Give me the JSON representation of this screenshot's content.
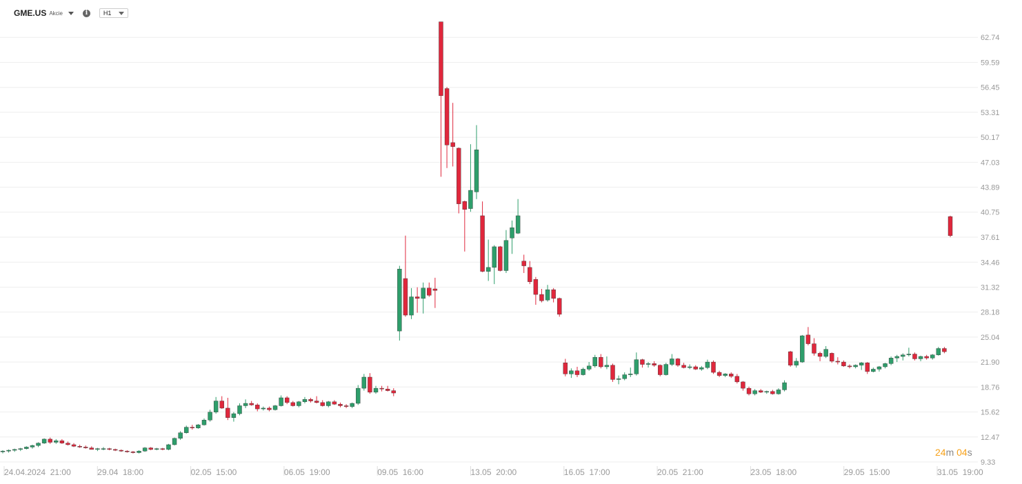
{
  "header": {
    "symbol": "GME.US",
    "asset_type": "Akcie",
    "timeframe": "H1"
  },
  "countdown": {
    "minutes": "24",
    "m_unit": "m",
    "seconds": "04",
    "s_unit": "s"
  },
  "colors": {
    "up": "#2e9e6b",
    "down": "#e0273c",
    "grid": "#eeeeee",
    "axis_text": "#999999",
    "countdown": "#f7a21b"
  },
  "chart_data": {
    "type": "candlestick",
    "title": "",
    "xlabel": "",
    "ylabel": "",
    "ylim": [
      9.33,
      65.88
    ],
    "grid": true,
    "y_ticks": [
      "62.74",
      "59.59",
      "56.45",
      "53.31",
      "50.17",
      "47.03",
      "43.89",
      "40.75",
      "37.61",
      "34.46",
      "31.32",
      "28.18",
      "25.04",
      "21.90",
      "18.76",
      "15.62",
      "12.47",
      "9.33"
    ],
    "x_ticks": [
      "24.04.2024  21:00",
      "29.04  18:00",
      "02.05  15:00",
      "06.05  19:00",
      "09.05  16:00",
      "13.05  20:00",
      "16.05  17:00",
      "20.05  21:00",
      "23.05  18:00",
      "29.05  15:00",
      "31.05  19:00"
    ],
    "candles": [
      {
        "o": 10.6,
        "h": 10.8,
        "l": 10.4,
        "c": 10.7
      },
      {
        "o": 10.7,
        "h": 10.9,
        "l": 10.5,
        "c": 10.8
      },
      {
        "o": 10.8,
        "h": 11.0,
        "l": 10.6,
        "c": 10.9
      },
      {
        "o": 10.9,
        "h": 11.1,
        "l": 10.7,
        "c": 11.0
      },
      {
        "o": 11.0,
        "h": 11.3,
        "l": 10.9,
        "c": 11.2
      },
      {
        "o": 11.2,
        "h": 11.5,
        "l": 11.0,
        "c": 11.4
      },
      {
        "o": 11.4,
        "h": 11.8,
        "l": 11.2,
        "c": 11.7
      },
      {
        "o": 11.7,
        "h": 12.3,
        "l": 11.6,
        "c": 12.2
      },
      {
        "o": 12.2,
        "h": 12.4,
        "l": 11.6,
        "c": 11.8
      },
      {
        "o": 11.8,
        "h": 12.2,
        "l": 11.6,
        "c": 12.0
      },
      {
        "o": 12.0,
        "h": 12.2,
        "l": 11.6,
        "c": 11.7
      },
      {
        "o": 11.7,
        "h": 11.9,
        "l": 11.4,
        "c": 11.5
      },
      {
        "o": 11.5,
        "h": 11.7,
        "l": 11.2,
        "c": 11.3
      },
      {
        "o": 11.3,
        "h": 11.5,
        "l": 11.1,
        "c": 11.2
      },
      {
        "o": 11.2,
        "h": 11.4,
        "l": 11.0,
        "c": 11.1
      },
      {
        "o": 11.1,
        "h": 11.3,
        "l": 10.9,
        "c": 10.9
      },
      {
        "o": 10.9,
        "h": 11.1,
        "l": 10.7,
        "c": 11.0
      },
      {
        "o": 11.0,
        "h": 11.2,
        "l": 10.8,
        "c": 11.0
      },
      {
        "o": 11.0,
        "h": 11.1,
        "l": 10.8,
        "c": 10.9
      },
      {
        "o": 10.9,
        "h": 11.0,
        "l": 10.7,
        "c": 10.8
      },
      {
        "o": 10.8,
        "h": 10.9,
        "l": 10.6,
        "c": 10.7
      },
      {
        "o": 10.7,
        "h": 10.8,
        "l": 10.5,
        "c": 10.6
      },
      {
        "o": 10.6,
        "h": 10.7,
        "l": 10.4,
        "c": 10.5
      },
      {
        "o": 10.5,
        "h": 10.8,
        "l": 10.4,
        "c": 10.7
      },
      {
        "o": 10.7,
        "h": 11.2,
        "l": 10.6,
        "c": 11.1
      },
      {
        "o": 11.1,
        "h": 11.2,
        "l": 10.8,
        "c": 10.9
      },
      {
        "o": 10.9,
        "h": 11.1,
        "l": 10.8,
        "c": 11.0
      },
      {
        "o": 11.0,
        "h": 11.1,
        "l": 10.8,
        "c": 10.9
      },
      {
        "o": 10.9,
        "h": 11.6,
        "l": 10.8,
        "c": 11.5
      },
      {
        "o": 11.5,
        "h": 12.4,
        "l": 11.4,
        "c": 12.3
      },
      {
        "o": 12.3,
        "h": 13.2,
        "l": 12.1,
        "c": 13.0
      },
      {
        "o": 13.0,
        "h": 13.9,
        "l": 12.9,
        "c": 13.7
      },
      {
        "o": 13.7,
        "h": 14.0,
        "l": 13.4,
        "c": 13.6
      },
      {
        "o": 13.6,
        "h": 14.1,
        "l": 13.5,
        "c": 14.0
      },
      {
        "o": 14.0,
        "h": 14.8,
        "l": 13.9,
        "c": 14.6
      },
      {
        "o": 14.6,
        "h": 15.9,
        "l": 14.4,
        "c": 15.6
      },
      {
        "o": 15.6,
        "h": 17.5,
        "l": 15.4,
        "c": 17.0
      },
      {
        "o": 17.0,
        "h": 17.6,
        "l": 16.0,
        "c": 16.1
      },
      {
        "o": 16.1,
        "h": 17.4,
        "l": 14.6,
        "c": 14.9
      },
      {
        "o": 14.9,
        "h": 15.6,
        "l": 14.4,
        "c": 15.4
      },
      {
        "o": 15.4,
        "h": 16.7,
        "l": 15.2,
        "c": 16.4
      },
      {
        "o": 16.4,
        "h": 17.2,
        "l": 16.1,
        "c": 16.7
      },
      {
        "o": 16.7,
        "h": 17.0,
        "l": 16.4,
        "c": 16.5
      },
      {
        "o": 16.5,
        "h": 16.7,
        "l": 15.7,
        "c": 16.0
      },
      {
        "o": 16.0,
        "h": 16.3,
        "l": 15.8,
        "c": 16.1
      },
      {
        "o": 16.1,
        "h": 16.3,
        "l": 15.7,
        "c": 15.9
      },
      {
        "o": 15.9,
        "h": 16.5,
        "l": 15.8,
        "c": 16.4
      },
      {
        "o": 16.4,
        "h": 17.7,
        "l": 16.3,
        "c": 17.4
      },
      {
        "o": 17.4,
        "h": 17.6,
        "l": 16.6,
        "c": 16.8
      },
      {
        "o": 16.8,
        "h": 17.0,
        "l": 16.3,
        "c": 16.4
      },
      {
        "o": 16.4,
        "h": 17.0,
        "l": 16.2,
        "c": 16.9
      },
      {
        "o": 16.9,
        "h": 17.5,
        "l": 16.7,
        "c": 17.2
      },
      {
        "o": 17.2,
        "h": 17.4,
        "l": 16.8,
        "c": 17.0
      },
      {
        "o": 17.0,
        "h": 17.6,
        "l": 16.7,
        "c": 16.8
      },
      {
        "o": 16.8,
        "h": 17.1,
        "l": 16.3,
        "c": 16.4
      },
      {
        "o": 16.4,
        "h": 17.0,
        "l": 16.2,
        "c": 16.9
      },
      {
        "o": 16.9,
        "h": 17.1,
        "l": 16.5,
        "c": 16.6
      },
      {
        "o": 16.6,
        "h": 16.8,
        "l": 16.2,
        "c": 16.4
      },
      {
        "o": 16.4,
        "h": 16.6,
        "l": 16.1,
        "c": 16.3
      },
      {
        "o": 16.3,
        "h": 16.8,
        "l": 16.1,
        "c": 16.7
      },
      {
        "o": 16.7,
        "h": 19.0,
        "l": 16.5,
        "c": 18.6
      },
      {
        "o": 18.6,
        "h": 20.4,
        "l": 18.3,
        "c": 20.0
      },
      {
        "o": 20.0,
        "h": 20.5,
        "l": 17.9,
        "c": 18.1
      },
      {
        "o": 18.1,
        "h": 18.9,
        "l": 17.9,
        "c": 18.6
      },
      {
        "o": 18.6,
        "h": 18.9,
        "l": 18.2,
        "c": 18.5
      },
      {
        "o": 18.5,
        "h": 18.9,
        "l": 18.2,
        "c": 18.3
      },
      {
        "o": 18.3,
        "h": 18.6,
        "l": 17.6,
        "c": 18.0
      },
      {
        "o": 25.8,
        "h": 34.0,
        "l": 24.6,
        "c": 33.6
      },
      {
        "o": 32.4,
        "h": 37.8,
        "l": 27.6,
        "c": 27.8
      },
      {
        "o": 27.8,
        "h": 31.2,
        "l": 27.3,
        "c": 30.1
      },
      {
        "o": 30.1,
        "h": 31.3,
        "l": 28.1,
        "c": 29.9
      },
      {
        "o": 29.9,
        "h": 31.9,
        "l": 28.0,
        "c": 31.2
      },
      {
        "o": 31.2,
        "h": 31.9,
        "l": 30.1,
        "c": 30.3
      },
      {
        "o": 31.1,
        "h": 32.5,
        "l": 28.7,
        "c": 30.9
      },
      {
        "o": 64.7,
        "h": 64.7,
        "l": 45.2,
        "c": 55.4
      },
      {
        "o": 56.3,
        "h": 56.5,
        "l": 46.3,
        "c": 49.2
      },
      {
        "o": 49.5,
        "h": 54.5,
        "l": 46.5,
        "c": 49.0
      },
      {
        "o": 48.8,
        "h": 48.9,
        "l": 40.6,
        "c": 41.8
      },
      {
        "o": 42.1,
        "h": 42.2,
        "l": 35.8,
        "c": 41.1
      },
      {
        "o": 41.2,
        "h": 49.3,
        "l": 40.8,
        "c": 43.5
      },
      {
        "o": 43.3,
        "h": 51.7,
        "l": 42.4,
        "c": 48.6
      },
      {
        "o": 40.3,
        "h": 42.1,
        "l": 33.2,
        "c": 33.3
      },
      {
        "o": 33.3,
        "h": 37.3,
        "l": 32.1,
        "c": 33.8
      },
      {
        "o": 33.8,
        "h": 36.6,
        "l": 31.7,
        "c": 36.4
      },
      {
        "o": 36.4,
        "h": 36.5,
        "l": 33.3,
        "c": 33.4
      },
      {
        "o": 33.4,
        "h": 38.5,
        "l": 33.1,
        "c": 37.2
      },
      {
        "o": 37.5,
        "h": 39.7,
        "l": 35.5,
        "c": 38.8
      },
      {
        "o": 38.1,
        "h": 42.4,
        "l": 38.0,
        "c": 40.3
      },
      {
        "o": 34.6,
        "h": 35.4,
        "l": 33.1,
        "c": 34.0
      },
      {
        "o": 33.8,
        "h": 34.6,
        "l": 31.7,
        "c": 32.0
      },
      {
        "o": 32.3,
        "h": 32.6,
        "l": 29.1,
        "c": 30.4
      },
      {
        "o": 30.4,
        "h": 31.1,
        "l": 29.4,
        "c": 29.6
      },
      {
        "o": 29.7,
        "h": 31.6,
        "l": 29.5,
        "c": 31.0
      },
      {
        "o": 31.0,
        "h": 31.2,
        "l": 29.4,
        "c": 29.9
      },
      {
        "o": 29.9,
        "h": 30.0,
        "l": 27.6,
        "c": 27.9
      },
      {
        "o": 21.8,
        "h": 22.3,
        "l": 20.1,
        "c": 20.4
      },
      {
        "o": 20.4,
        "h": 21.1,
        "l": 19.9,
        "c": 20.8
      },
      {
        "o": 20.8,
        "h": 21.3,
        "l": 20.0,
        "c": 20.3
      },
      {
        "o": 20.3,
        "h": 21.2,
        "l": 20.2,
        "c": 21.0
      },
      {
        "o": 21.0,
        "h": 21.9,
        "l": 20.8,
        "c": 21.4
      },
      {
        "o": 21.4,
        "h": 22.8,
        "l": 21.2,
        "c": 22.5
      },
      {
        "o": 22.5,
        "h": 22.9,
        "l": 21.1,
        "c": 21.3
      },
      {
        "o": 21.3,
        "h": 22.6,
        "l": 21.0,
        "c": 21.5
      },
      {
        "o": 21.5,
        "h": 21.7,
        "l": 19.4,
        "c": 19.7
      },
      {
        "o": 19.7,
        "h": 20.2,
        "l": 19.1,
        "c": 19.8
      },
      {
        "o": 19.8,
        "h": 20.6,
        "l": 19.6,
        "c": 20.3
      },
      {
        "o": 20.3,
        "h": 21.2,
        "l": 20.0,
        "c": 20.4
      },
      {
        "o": 20.4,
        "h": 23.1,
        "l": 20.2,
        "c": 22.2
      },
      {
        "o": 22.2,
        "h": 22.3,
        "l": 21.2,
        "c": 21.6
      },
      {
        "o": 21.6,
        "h": 21.9,
        "l": 21.2,
        "c": 21.7
      },
      {
        "o": 21.7,
        "h": 22.0,
        "l": 21.3,
        "c": 21.5
      },
      {
        "o": 21.5,
        "h": 21.6,
        "l": 20.1,
        "c": 20.3
      },
      {
        "o": 20.3,
        "h": 21.8,
        "l": 20.2,
        "c": 21.6
      },
      {
        "o": 21.6,
        "h": 22.9,
        "l": 21.4,
        "c": 22.3
      },
      {
        "o": 22.3,
        "h": 22.4,
        "l": 21.3,
        "c": 21.5
      },
      {
        "o": 21.5,
        "h": 21.8,
        "l": 21.1,
        "c": 21.2
      },
      {
        "o": 21.2,
        "h": 21.6,
        "l": 21.0,
        "c": 21.3
      },
      {
        "o": 21.3,
        "h": 21.5,
        "l": 20.9,
        "c": 21.0
      },
      {
        "o": 21.0,
        "h": 21.4,
        "l": 20.8,
        "c": 21.2
      },
      {
        "o": 21.2,
        "h": 22.2,
        "l": 21.0,
        "c": 21.9
      },
      {
        "o": 21.9,
        "h": 22.1,
        "l": 20.4,
        "c": 20.6
      },
      {
        "o": 20.6,
        "h": 20.8,
        "l": 20.0,
        "c": 20.2
      },
      {
        "o": 20.2,
        "h": 20.5,
        "l": 20.0,
        "c": 20.4
      },
      {
        "o": 20.4,
        "h": 20.6,
        "l": 19.9,
        "c": 20.1
      },
      {
        "o": 20.1,
        "h": 20.4,
        "l": 19.2,
        "c": 19.4
      },
      {
        "o": 19.4,
        "h": 19.5,
        "l": 18.3,
        "c": 18.6
      },
      {
        "o": 18.6,
        "h": 18.8,
        "l": 17.7,
        "c": 17.9
      },
      {
        "o": 17.9,
        "h": 18.5,
        "l": 17.7,
        "c": 18.3
      },
      {
        "o": 18.3,
        "h": 18.5,
        "l": 18.0,
        "c": 18.1
      },
      {
        "o": 18.1,
        "h": 18.3,
        "l": 17.9,
        "c": 18.2
      },
      {
        "o": 18.2,
        "h": 18.4,
        "l": 17.8,
        "c": 17.9
      },
      {
        "o": 17.9,
        "h": 18.6,
        "l": 17.8,
        "c": 18.4
      },
      {
        "o": 18.4,
        "h": 19.6,
        "l": 18.2,
        "c": 19.3
      },
      {
        "o": 23.2,
        "h": 23.3,
        "l": 21.3,
        "c": 21.5
      },
      {
        "o": 21.5,
        "h": 22.4,
        "l": 21.2,
        "c": 22.0
      },
      {
        "o": 21.9,
        "h": 25.3,
        "l": 21.8,
        "c": 25.2
      },
      {
        "o": 25.3,
        "h": 26.3,
        "l": 24.0,
        "c": 24.2
      },
      {
        "o": 24.2,
        "h": 24.9,
        "l": 22.7,
        "c": 23.0
      },
      {
        "o": 23.0,
        "h": 23.2,
        "l": 22.0,
        "c": 22.6
      },
      {
        "o": 22.6,
        "h": 23.9,
        "l": 22.4,
        "c": 23.5
      },
      {
        "o": 23.0,
        "h": 23.1,
        "l": 21.8,
        "c": 22.0
      },
      {
        "o": 22.0,
        "h": 22.5,
        "l": 21.6,
        "c": 21.9
      },
      {
        "o": 21.9,
        "h": 22.1,
        "l": 21.3,
        "c": 21.4
      },
      {
        "o": 21.4,
        "h": 21.6,
        "l": 21.1,
        "c": 21.3
      },
      {
        "o": 21.3,
        "h": 21.6,
        "l": 21.1,
        "c": 21.5
      },
      {
        "o": 21.5,
        "h": 21.9,
        "l": 20.9,
        "c": 21.8
      },
      {
        "o": 21.8,
        "h": 21.9,
        "l": 20.4,
        "c": 20.7
      },
      {
        "o": 20.7,
        "h": 21.2,
        "l": 20.6,
        "c": 21.0
      },
      {
        "o": 21.0,
        "h": 21.4,
        "l": 20.7,
        "c": 21.3
      },
      {
        "o": 21.3,
        "h": 21.8,
        "l": 21.1,
        "c": 21.7
      },
      {
        "o": 21.7,
        "h": 22.6,
        "l": 21.5,
        "c": 22.4
      },
      {
        "o": 22.4,
        "h": 22.8,
        "l": 21.9,
        "c": 22.6
      },
      {
        "o": 22.6,
        "h": 23.0,
        "l": 22.1,
        "c": 22.8
      },
      {
        "o": 22.8,
        "h": 23.7,
        "l": 22.6,
        "c": 22.9
      },
      {
        "o": 22.9,
        "h": 23.1,
        "l": 22.1,
        "c": 22.3
      },
      {
        "o": 22.3,
        "h": 22.7,
        "l": 22.0,
        "c": 22.6
      },
      {
        "o": 22.6,
        "h": 22.8,
        "l": 22.2,
        "c": 22.4
      },
      {
        "o": 22.4,
        "h": 22.9,
        "l": 22.2,
        "c": 22.8
      },
      {
        "o": 22.8,
        "h": 23.8,
        "l": 22.7,
        "c": 23.6
      },
      {
        "o": 23.6,
        "h": 23.8,
        "l": 23.0,
        "c": 23.2
      },
      {
        "o": 40.2,
        "h": 40.3,
        "l": 37.6,
        "c": 37.8
      }
    ]
  }
}
